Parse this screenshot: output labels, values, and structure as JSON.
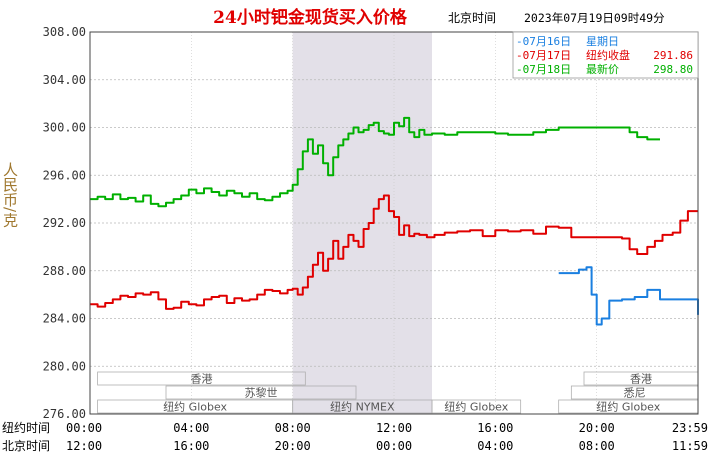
{
  "chart_data": {
    "type": "line",
    "title": "24小时钯金现货买入价格",
    "time_label": "北京时间",
    "timestamp": "2023年07月19日09时49分",
    "ylabel": "人民币/克",
    "ylim": [
      276,
      308
    ],
    "yticks": [
      "308.00",
      "304.00",
      "300.00",
      "296.00",
      "292.00",
      "288.00",
      "284.00",
      "280.00",
      "276.00"
    ],
    "ytick_values": [
      308,
      304,
      300,
      296,
      292,
      288,
      284,
      280,
      276
    ],
    "x_rows": [
      {
        "label": "纽约时间",
        "ticks": [
          "00:00",
          "04:00",
          "08:00",
          "12:00",
          "16:00",
          "20:00",
          "23:59"
        ]
      },
      {
        "label": "北京时间",
        "ticks": [
          "12:00",
          "16:00",
          "20:00",
          "00:00",
          "04:00",
          "08:00",
          "11:59"
        ]
      }
    ],
    "x_range_hours": [
      0,
      24
    ],
    "highlight_hours": [
      8,
      13.5
    ],
    "legend": [
      {
        "prefix": "-07月16日",
        "name": "星期日",
        "value": "",
        "color": "#1a7fe0"
      },
      {
        "prefix": "-07月17日",
        "name": "纽约收盘",
        "value": "291.86",
        "color": "#e00000"
      },
      {
        "prefix": "-07月18日",
        "name": "最新价",
        "value": "298.80",
        "color": "#00b000"
      }
    ],
    "markets": [
      {
        "name": "香港",
        "start": 0.3,
        "end": 8.5,
        "row": 0
      },
      {
        "name": "香港",
        "start": 19.5,
        "end": 24,
        "row": 0
      },
      {
        "name": "苏黎世",
        "start": 3.0,
        "end": 10.5,
        "row": 1
      },
      {
        "name": "悉尼",
        "start": 19.0,
        "end": 24,
        "row": 1
      },
      {
        "name": "纽约 Globex",
        "start": 0.3,
        "end": 8.0,
        "row": 2
      },
      {
        "name": "纽约 NYMEX",
        "start": 8.0,
        "end": 13.5,
        "row": 2
      },
      {
        "name": "纽约 Globex",
        "start": 13.5,
        "end": 17.0,
        "row": 2
      },
      {
        "name": "纽约 Globex",
        "start": 18.5,
        "end": 24,
        "row": 2
      }
    ],
    "series": [
      {
        "name": "07月18日",
        "color": "#00b000",
        "x": [
          0,
          0.3,
          0.6,
          0.9,
          1.2,
          1.5,
          1.8,
          2.1,
          2.4,
          2.7,
          3.0,
          3.3,
          3.6,
          3.9,
          4.2,
          4.5,
          4.8,
          5.1,
          5.4,
          5.7,
          6.0,
          6.3,
          6.6,
          6.9,
          7.2,
          7.5,
          7.8,
          8.0,
          8.2,
          8.4,
          8.6,
          8.8,
          9.0,
          9.2,
          9.4,
          9.6,
          9.8,
          10.0,
          10.2,
          10.4,
          10.6,
          10.8,
          11.0,
          11.2,
          11.4,
          11.6,
          11.8,
          12.0,
          12.2,
          12.4,
          12.6,
          12.8,
          13.0,
          13.2,
          13.5,
          14.0,
          14.5,
          15.0,
          15.5,
          16.0,
          16.5,
          17.0,
          17.5,
          18.0,
          18.5,
          19.0,
          19.5,
          20.0,
          20.5,
          21.0,
          21.3,
          21.6,
          22.0,
          22.5
        ],
        "values": [
          294.0,
          294.2,
          294.0,
          294.4,
          294.0,
          294.1,
          293.8,
          294.3,
          293.6,
          293.4,
          293.7,
          294.0,
          294.3,
          294.8,
          294.5,
          294.9,
          294.6,
          294.3,
          294.7,
          294.5,
          294.2,
          294.5,
          294.0,
          293.9,
          294.2,
          294.5,
          294.7,
          295.2,
          296.5,
          298.0,
          299.0,
          297.8,
          298.5,
          297.0,
          296.0,
          297.5,
          298.5,
          299.0,
          299.5,
          300.0,
          299.6,
          299.8,
          300.2,
          300.4,
          299.7,
          299.5,
          299.4,
          300.4,
          300.1,
          300.8,
          299.6,
          299.2,
          299.8,
          299.4,
          299.5,
          299.4,
          299.6,
          299.6,
          299.6,
          299.5,
          299.4,
          299.4,
          299.6,
          299.8,
          300.0,
          300.0,
          300.0,
          300.0,
          300.0,
          300.0,
          299.6,
          299.2,
          299.0,
          299.0
        ]
      },
      {
        "name": "07月17日",
        "color": "#e00000",
        "x": [
          0,
          0.3,
          0.6,
          0.9,
          1.2,
          1.5,
          1.8,
          2.1,
          2.4,
          2.7,
          3.0,
          3.3,
          3.6,
          3.9,
          4.2,
          4.5,
          4.8,
          5.1,
          5.4,
          5.7,
          6.0,
          6.3,
          6.6,
          6.9,
          7.2,
          7.5,
          7.8,
          8.0,
          8.2,
          8.4,
          8.6,
          8.8,
          9.0,
          9.2,
          9.4,
          9.6,
          9.8,
          10.0,
          10.2,
          10.4,
          10.6,
          10.8,
          11.0,
          11.2,
          11.4,
          11.6,
          11.8,
          12.0,
          12.2,
          12.4,
          12.6,
          12.8,
          13.0,
          13.3,
          13.6,
          14.0,
          14.5,
          15.0,
          15.5,
          16.0,
          16.5,
          17.0,
          17.5,
          18.0,
          18.5,
          19.0,
          19.5,
          20.0,
          20.3,
          20.6,
          21.0,
          21.3,
          21.6,
          22.0,
          22.3,
          22.6,
          23.0,
          23.3,
          23.6,
          24.0
        ],
        "values": [
          285.2,
          285.0,
          285.3,
          285.6,
          285.9,
          285.8,
          286.1,
          286.0,
          286.2,
          285.6,
          284.8,
          284.9,
          285.4,
          285.2,
          285.1,
          285.6,
          285.8,
          285.9,
          285.3,
          285.7,
          285.5,
          285.6,
          286.0,
          286.4,
          286.3,
          286.1,
          286.4,
          286.5,
          286.0,
          286.6,
          287.5,
          288.5,
          289.5,
          288.0,
          289.0,
          290.5,
          289.0,
          290.0,
          291.0,
          290.5,
          290.0,
          291.5,
          292.0,
          293.2,
          294.0,
          294.3,
          293.0,
          292.5,
          291.0,
          291.8,
          290.9,
          291.1,
          291.0,
          290.8,
          291.0,
          291.2,
          291.3,
          291.4,
          290.9,
          291.4,
          291.3,
          291.4,
          291.1,
          291.7,
          291.6,
          290.8,
          290.8,
          290.8,
          290.8,
          290.8,
          290.7,
          289.8,
          289.4,
          290.0,
          290.5,
          291.0,
          291.2,
          292.2,
          293.0,
          293.0
        ]
      },
      {
        "name": "07月16日",
        "color": "#1a7fe0",
        "x": [
          18.5,
          19.0,
          19.3,
          19.6,
          19.8,
          20.0,
          20.2,
          20.5,
          21.0,
          21.5,
          22.0,
          22.5,
          23.0,
          23.5,
          24.0
        ],
        "values": [
          287.8,
          287.8,
          288.1,
          288.3,
          286.0,
          283.5,
          284.0,
          285.5,
          285.6,
          285.8,
          286.4,
          285.6,
          285.6,
          285.6,
          284.3
        ]
      }
    ]
  }
}
